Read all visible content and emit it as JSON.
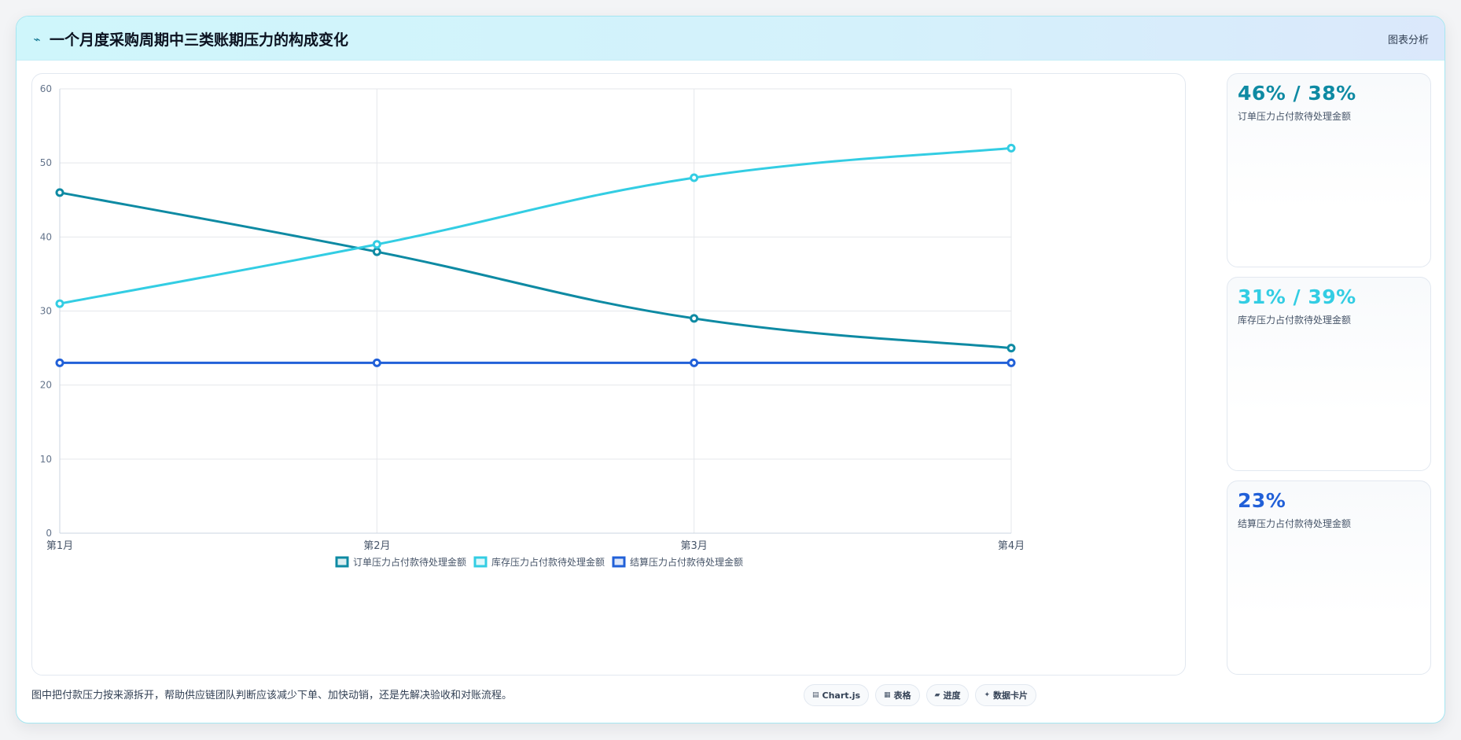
{
  "header": {
    "icon": "spark-line-icon",
    "title": "一个月度采购周期中三类账期压力的构成变化",
    "right_label": "图表分析"
  },
  "chart_data": {
    "type": "line",
    "categories": [
      "第1月",
      "第2月",
      "第3月",
      "第4月"
    ],
    "ylim": [
      0,
      60
    ],
    "yticks": [
      0,
      10,
      20,
      30,
      40,
      50,
      60
    ],
    "grid": true,
    "legend_position": "bottom",
    "series": [
      {
        "name": "订单压力占付款待处理金额",
        "color": "#0e8aa3",
        "values": [
          46,
          38,
          29,
          25
        ]
      },
      {
        "name": "库存压力占付款待处理金额",
        "color": "#33cde3",
        "values": [
          31,
          39,
          48,
          52
        ]
      },
      {
        "name": "结算压力占付款待处理金额",
        "color": "#2160d8",
        "values": [
          23,
          23,
          23,
          23
        ]
      }
    ]
  },
  "stats": [
    {
      "value": "46% / 38%",
      "label": "订单压力占付款待处理金额",
      "color": "#0e8aa3"
    },
    {
      "value": "31% / 39%",
      "label": "库存压力占付款待处理金额",
      "color": "#33cde3"
    },
    {
      "value": "23%",
      "label": "结算压力占付款待处理金额",
      "color": "#2160d8"
    }
  ],
  "footer": {
    "note": "图中把付款压力按来源拆开，帮助供应链团队判断应该减少下单、加快动销，还是先解决验收和对账流程。",
    "tags": [
      {
        "icon": "chart-icon",
        "glyph": "▤",
        "label": "Chart.js"
      },
      {
        "icon": "table-icon",
        "glyph": "▦",
        "label": "表格"
      },
      {
        "icon": "progress-icon",
        "glyph": "▰",
        "label": "进度"
      },
      {
        "icon": "data-card-icon",
        "glyph": "✦",
        "label": "数据卡片"
      }
    ]
  }
}
